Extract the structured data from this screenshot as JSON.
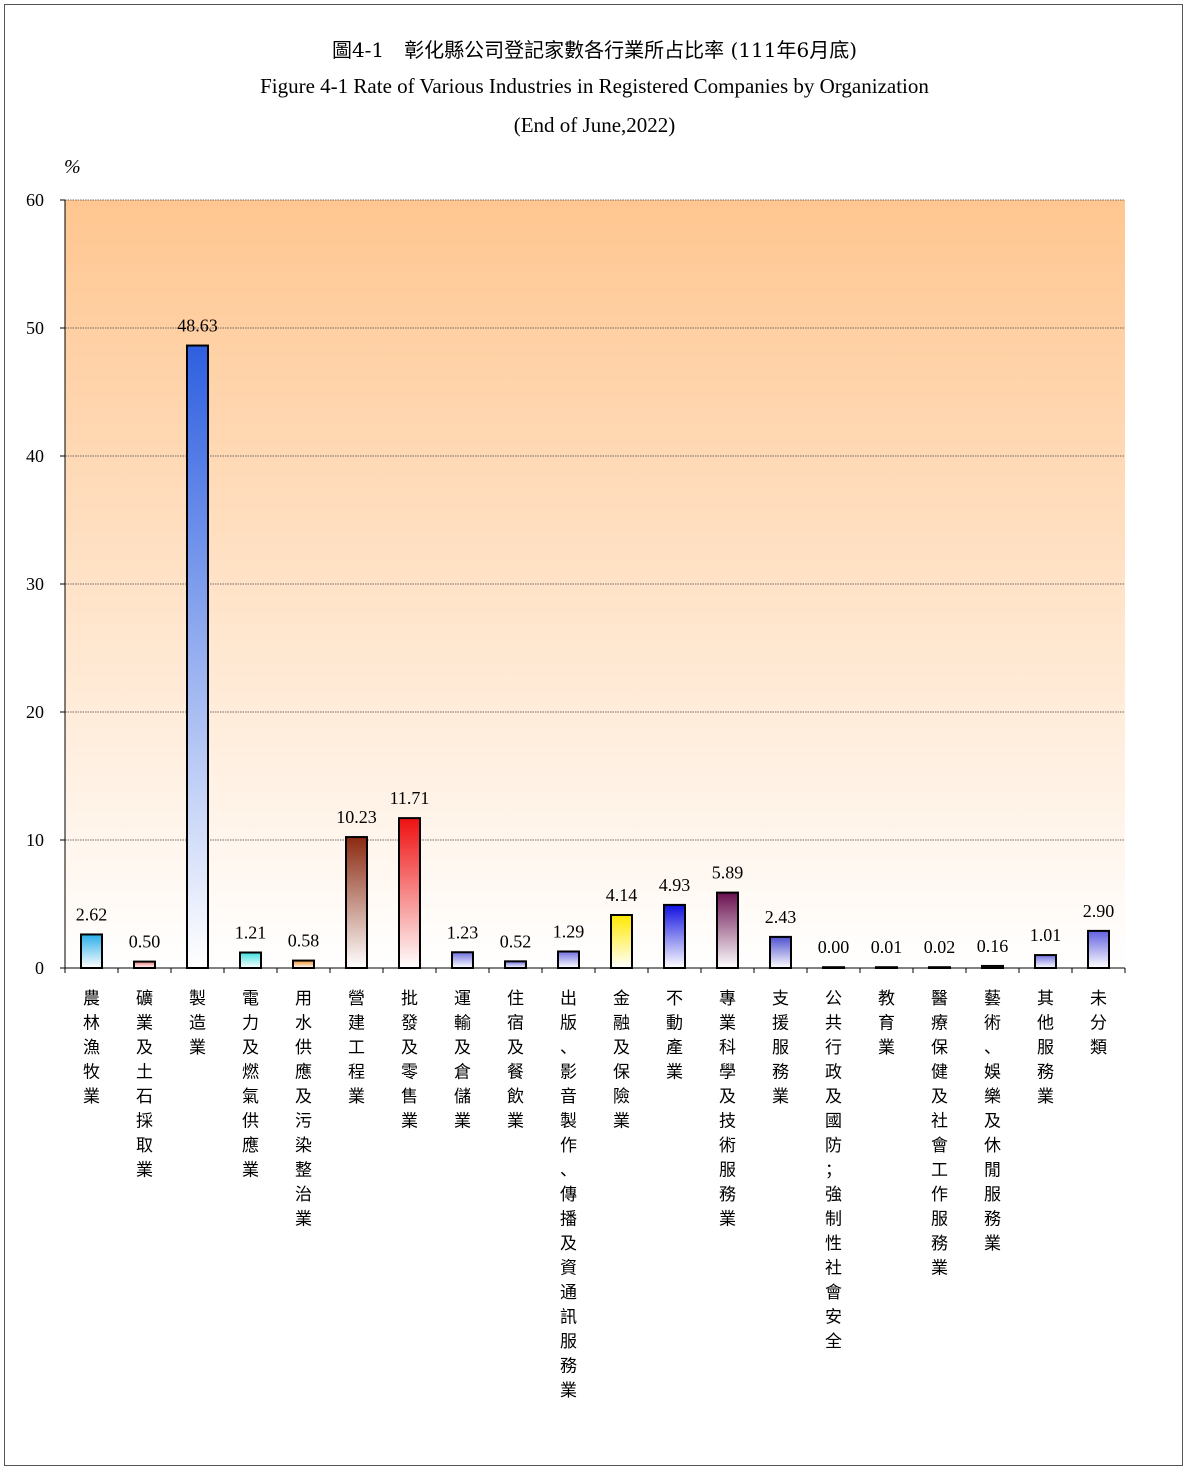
{
  "title_zh": "圖4-1　彰化縣公司登記家數各行業所占比率 (111年6月底)",
  "title_en": "Figure 4-1  Rate of Various Industries in Registered Companies by Organization",
  "title_en2": "(End of June,2022)",
  "unit": "%",
  "chart_data": {
    "type": "bar",
    "ylim": [
      0,
      60
    ],
    "yticks": [
      0,
      10,
      20,
      30,
      40,
      50,
      60
    ],
    "grid": true,
    "categories": [
      "農林漁牧業",
      "礦業及土石採取業",
      "製造業",
      "電力及燃氣供應業",
      "用水供應及污染整治業",
      "營建工程業",
      "批發及零售業",
      "運輸及倉儲業",
      "住宿及餐飲業",
      "出版、影音製作、傳播及資通訊服務業",
      "金融及保險業",
      "不動產業",
      "專業科學及技術服務業",
      "支援服務業",
      "公共行政及國防；強制性社會安全",
      "教育業",
      "醫療保健及社會工作服務業",
      "藝術、娛樂及休閒服務業",
      "其他服務業",
      "未分類"
    ],
    "values": [
      2.62,
      0.5,
      48.63,
      1.21,
      0.58,
      10.23,
      11.71,
      1.23,
      0.52,
      1.29,
      4.14,
      4.93,
      5.89,
      2.43,
      0.0,
      0.01,
      0.02,
      0.16,
      1.01,
      2.9
    ],
    "labels": [
      "2.62",
      "0.50",
      "48.63",
      "1.21",
      "0.58",
      "10.23",
      "11.71",
      "1.23",
      "0.52",
      "1.29",
      "4.14",
      "4.93",
      "5.89",
      "2.43",
      "0.00",
      "0.01",
      "0.02",
      "0.16",
      "1.01",
      "2.90"
    ],
    "colors": [
      "#2aaee8",
      "#f08080",
      "#2e5fe0",
      "#40e0e0",
      "#f0902a",
      "#8a2a10",
      "#ee1010",
      "#7070e0",
      "#7070e0",
      "#7070e0",
      "#ffe800",
      "#1010e0",
      "#6a1050",
      "#5050d0",
      "#5050d0",
      "#5050d0",
      "#5050d0",
      "#5050d0",
      "#7070e0",
      "#6060e0"
    ],
    "background_top": "#ffc690",
    "background_bottom": "#ffffff"
  }
}
